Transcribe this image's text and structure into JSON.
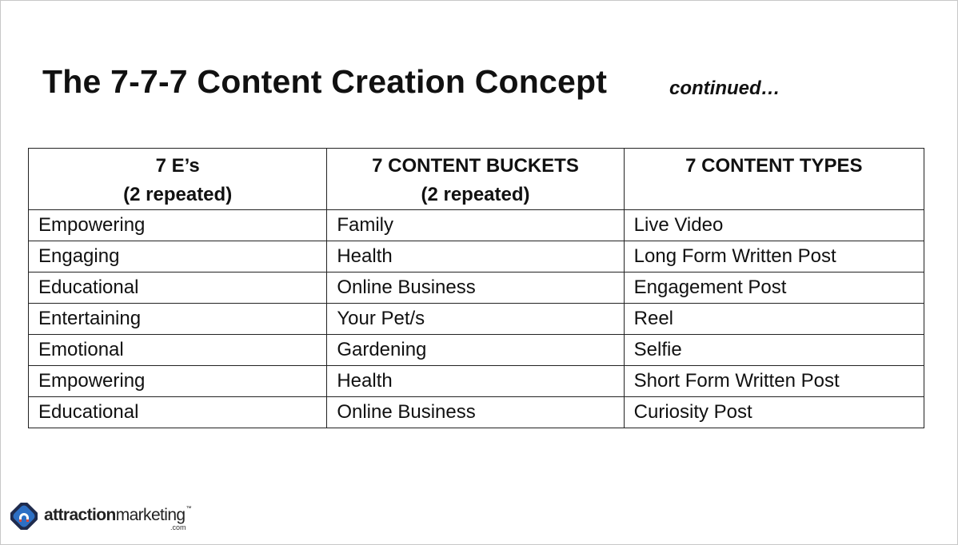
{
  "slide": {
    "title": "The 7-7-7 Content Creation Concept",
    "subtitle": "continued…"
  },
  "table": {
    "headers": [
      {
        "line1": "7 E’s",
        "line2": "(2 repeated)"
      },
      {
        "line1": "7 CONTENT BUCKETS",
        "line2": "(2 repeated)"
      },
      {
        "line1": "7 CONTENT TYPES",
        "line2": ""
      }
    ],
    "rows": [
      [
        "Empowering",
        "Family",
        "Live Video"
      ],
      [
        "Engaging",
        "Health",
        "Long Form Written Post"
      ],
      [
        "Educational",
        "Online Business",
        "Engagement Post"
      ],
      [
        "Entertaining",
        "Your Pet/s",
        "Reel"
      ],
      [
        "Emotional",
        "Gardening",
        "Selfie"
      ],
      [
        "Empowering",
        "Health",
        "Short Form Written Post"
      ],
      [
        "Educational",
        "Online Business",
        "Curiosity Post"
      ]
    ]
  },
  "logo": {
    "bold_part": "attraction",
    "regular_part": "marketing",
    "tm": "™",
    "suffix": ".com",
    "icon": "attraction-marketing-magnet-icon",
    "colors": {
      "blue": "#2d6fc4",
      "red": "#e2493a",
      "dark": "#1f2b4d"
    }
  }
}
